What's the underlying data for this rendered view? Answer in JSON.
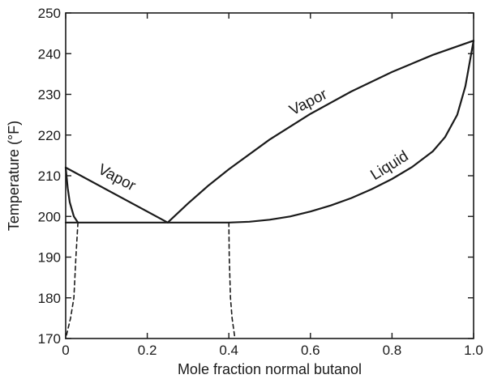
{
  "chart_data": {
    "type": "line",
    "title": "",
    "xlabel": "Mole fraction normal butanol",
    "ylabel": "Temperature (°F)",
    "xlim": [
      0,
      1.0
    ],
    "ylim": [
      170,
      250
    ],
    "x_ticks": [
      0,
      0.2,
      0.4,
      0.6,
      0.8,
      1.0
    ],
    "x_tick_labels": [
      "0",
      "0.2",
      "0.4",
      "0.6",
      "0.8",
      "1.0"
    ],
    "y_ticks": [
      170,
      180,
      190,
      200,
      210,
      220,
      230,
      240,
      250
    ],
    "y_tick_labels": [
      "170",
      "180",
      "190",
      "200",
      "210",
      "220",
      "230",
      "240",
      "250"
    ],
    "grid": false,
    "series": [
      {
        "values": [
          [
            0,
            212
          ],
          [
            0.25,
            198.5
          ]
        ]
      },
      {
        "values": [
          [
            0.25,
            198.5
          ],
          [
            0.3,
            203.2
          ],
          [
            0.35,
            207.6
          ],
          [
            0.4,
            211.6
          ],
          [
            0.5,
            218.9
          ],
          [
            0.6,
            225.2
          ],
          [
            0.7,
            230.7
          ],
          [
            0.8,
            235.5
          ],
          [
            0.9,
            239.7
          ],
          [
            1.0,
            243.2
          ]
        ]
      },
      {
        "values": [
          [
            0,
            198.5
          ],
          [
            0.4,
            198.5
          ],
          [
            0.45,
            198.7
          ],
          [
            0.5,
            199.2
          ],
          [
            0.55,
            200
          ],
          [
            0.6,
            201.2
          ],
          [
            0.65,
            202.7
          ],
          [
            0.7,
            204.5
          ],
          [
            0.75,
            206.7
          ],
          [
            0.8,
            209.2
          ],
          [
            0.85,
            212.2
          ],
          [
            0.9,
            216
          ],
          [
            0.93,
            219.5
          ],
          [
            0.96,
            225
          ],
          [
            0.98,
            232
          ],
          [
            1.0,
            243.2
          ]
        ]
      },
      {
        "values": [
          [
            0,
            212
          ],
          [
            0.005,
            207
          ],
          [
            0.01,
            203.5
          ],
          [
            0.02,
            200
          ],
          [
            0.03,
            198.5
          ]
        ]
      },
      {
        "values": [
          [
            0.03,
            198.5
          ],
          [
            0.025,
            190
          ],
          [
            0.02,
            180
          ],
          [
            0.012,
            175
          ],
          [
            0,
            170
          ]
        ],
        "dashed": true
      },
      {
        "values": [
          [
            0.4,
            198.5
          ],
          [
            0.401,
            190
          ],
          [
            0.404,
            180
          ],
          [
            0.408,
            175
          ],
          [
            0.415,
            170
          ]
        ],
        "dashed": true
      }
    ],
    "annotations": [
      {
        "text": "Vapor",
        "x": 0.12,
        "y": 208.5,
        "angle": 28
      },
      {
        "text": "Vapor",
        "x": 0.6,
        "y": 227,
        "angle": -27
      },
      {
        "text": "Liquid",
        "x": 0.8,
        "y": 211.5,
        "angle": -32
      }
    ],
    "line_color": "#1a1a1a"
  }
}
